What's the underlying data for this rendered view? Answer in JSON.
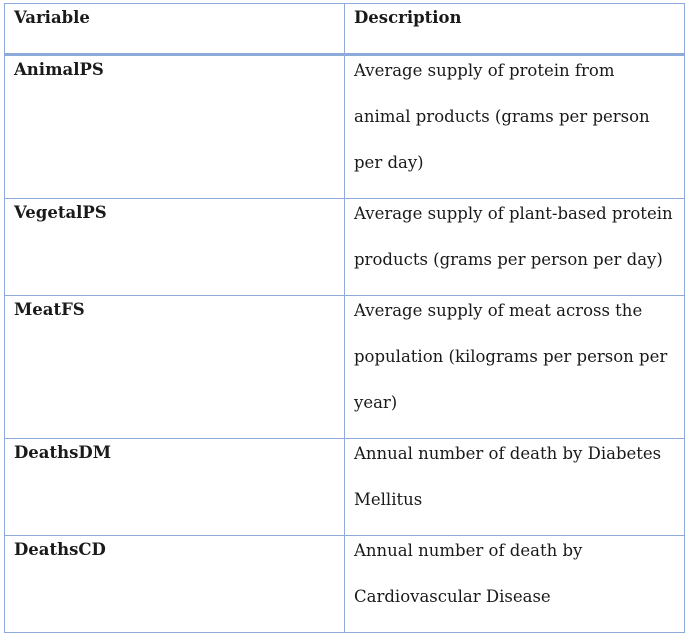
{
  "table": {
    "headers": [
      "Variable",
      "Description"
    ],
    "rows": [
      {
        "variable": "AnimalPS",
        "description": "Average supply of protein from animal products (grams per person per day)"
      },
      {
        "variable": "VegetalPS",
        "description": "Average supply of plant-based protein products (grams per person per day)"
      },
      {
        "variable": "MeatFS",
        "description": "Average supply of meat across the population (kilograms per person per year)"
      },
      {
        "variable": "DeathsDM",
        "description": "Annual number of death by Diabetes Mellitus"
      },
      {
        "variable": "DeathsCD",
        "description": "Annual number of death by Cardiovascular Disease"
      }
    ]
  }
}
